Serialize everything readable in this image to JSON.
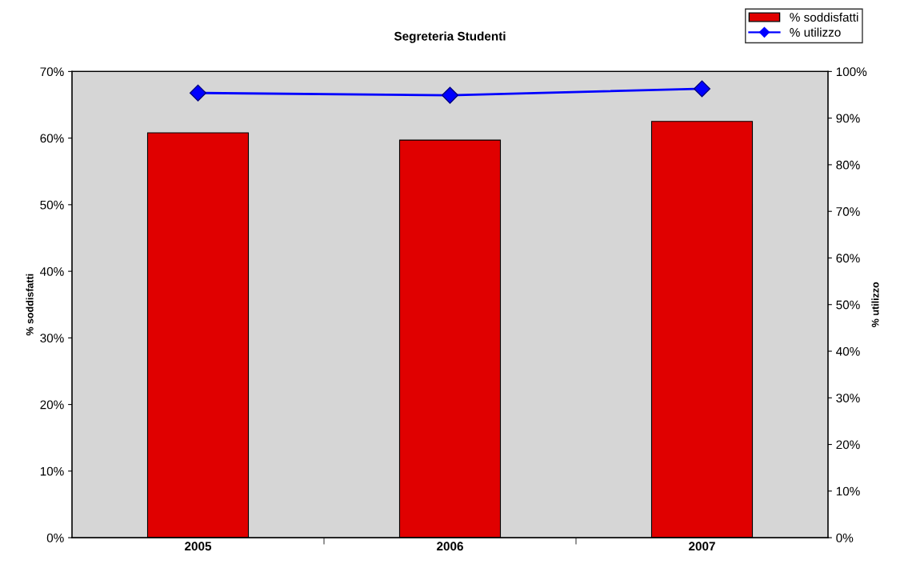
{
  "chart_data": {
    "type": "bar",
    "title": "Segreteria Studenti",
    "ylabel": "% soddisfatti",
    "y2label": "% utilizzo",
    "categories": [
      "2005",
      "2006",
      "2007"
    ],
    "series": [
      {
        "name": "% soddisfatti",
        "color": "#e00000",
        "values": [
          60.8,
          59.7,
          62.5
        ]
      },
      {
        "name": "% utilizzo",
        "type": "line",
        "axis": "y2",
        "color": "#0000ff",
        "marker": "diamond",
        "values": [
          95.4,
          94.9,
          96.3
        ]
      }
    ],
    "ylim": [
      0,
      70
    ],
    "yticks": [
      {
        "value": 0,
        "label": "0%"
      },
      {
        "value": 10,
        "label": "10%"
      },
      {
        "value": 20,
        "label": "20%"
      },
      {
        "value": 30,
        "label": "30%"
      },
      {
        "value": 40,
        "label": "40%"
      },
      {
        "value": 50,
        "label": "50%"
      },
      {
        "value": 60,
        "label": "60%"
      },
      {
        "value": 70,
        "label": "70%"
      }
    ],
    "y2lim": [
      0,
      100
    ],
    "y2ticks": [
      {
        "value": 0,
        "label": "0%"
      },
      {
        "value": 10,
        "label": "10%"
      },
      {
        "value": 20,
        "label": "20%"
      },
      {
        "value": 30,
        "label": "30%"
      },
      {
        "value": 40,
        "label": "40%"
      },
      {
        "value": 50,
        "label": "50%"
      },
      {
        "value": 60,
        "label": "60%"
      },
      {
        "value": 70,
        "label": "70%"
      },
      {
        "value": 80,
        "label": "80%"
      },
      {
        "value": 90,
        "label": "90%"
      },
      {
        "value": 100,
        "label": "100%"
      }
    ],
    "legend": "top right",
    "grid": false
  }
}
